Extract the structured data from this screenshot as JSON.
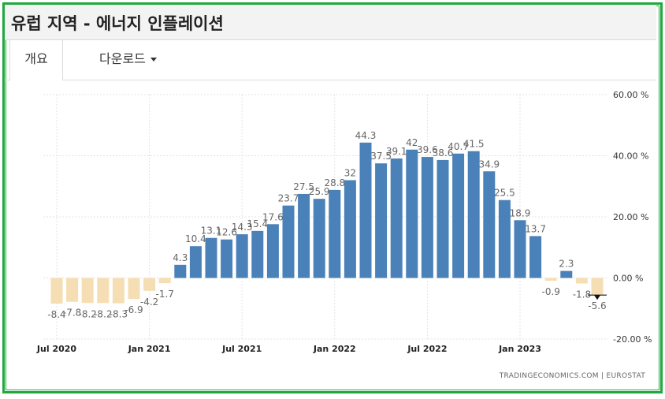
{
  "header": {
    "title": "유럽 지역 - 에너지 인플레이션"
  },
  "tabs": [
    {
      "label": "개요"
    },
    {
      "label": "다운로드"
    }
  ],
  "source": "TRADINGECONOMICS.COM  |  EUROSTAT",
  "colors": {
    "positive": "#4a81b9",
    "negative": "#f5deb3",
    "frame": "#1fa83c"
  },
  "chart_data": {
    "type": "bar",
    "ylim": [
      -20,
      60
    ],
    "y_ticks": [
      60,
      40,
      20,
      0,
      -20
    ],
    "y_tick_labels": [
      "60.00 %",
      "40.00 %",
      "20.00 %",
      "0.00 %",
      "-20.00 %"
    ],
    "x_tick_labels": [
      "Jul 2020",
      "Jan 2021",
      "Jul 2021",
      "Jan 2022",
      "Jul 2022",
      "Jan 2023"
    ],
    "x_tick_index": [
      0,
      6,
      12,
      18,
      24,
      30
    ],
    "categories": [
      "2020-07",
      "2020-08",
      "2020-09",
      "2020-10",
      "2020-11",
      "2020-12",
      "2021-01",
      "2021-02",
      "2021-03",
      "2021-04",
      "2021-05",
      "2021-06",
      "2021-07",
      "2021-08",
      "2021-09",
      "2021-10",
      "2021-11",
      "2021-12",
      "2022-01",
      "2022-02",
      "2022-03",
      "2022-04",
      "2022-05",
      "2022-06",
      "2022-07",
      "2022-08",
      "2022-09",
      "2022-10",
      "2022-11",
      "2022-12",
      "2023-01",
      "2023-02",
      "2023-03",
      "2023-04",
      "2023-05",
      "2023-06"
    ],
    "values": [
      -8.4,
      -7.8,
      -8.2,
      -8.2,
      -8.3,
      -6.9,
      -4.2,
      -1.7,
      4.3,
      10.4,
      13.1,
      12.6,
      14.3,
      15.4,
      17.6,
      23.7,
      27.5,
      25.9,
      28.8,
      32,
      44.3,
      37.5,
      39.1,
      42,
      39.6,
      38.6,
      40.7,
      41.5,
      34.9,
      25.5,
      18.9,
      13.7,
      -0.9,
      2.3,
      -1.8,
      -5.6
    ],
    "data_labels": [
      "-8.4",
      "-7.8",
      "-8.2",
      "-8.2",
      "-8.3",
      "-6.9",
      "-4.2",
      "-1.7",
      "4.3",
      "10.4",
      "13.1",
      "12.6",
      "14.3",
      "15.4",
      "17.6",
      "23.7",
      "27.5",
      "25.9",
      "28.8",
      "32",
      "44.3",
      "37.5",
      "39.1",
      "42",
      "39.6",
      "38.6",
      "40.7",
      "41.5",
      "34.9",
      "25.5",
      "18.9",
      "13.7",
      "-0.9",
      "2.3",
      "-1.8",
      "-5.6"
    ],
    "grid": true
  }
}
